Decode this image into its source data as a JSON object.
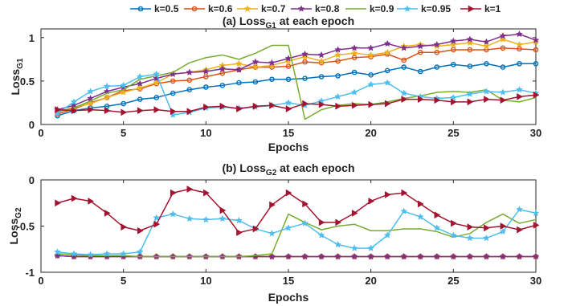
{
  "legend": {
    "entries": [
      {
        "label": "k=0.5",
        "color": "#0072BD",
        "marker": "circle"
      },
      {
        "label": "k=0.6",
        "color": "#D95319",
        "marker": "circle"
      },
      {
        "label": "k=0.7",
        "color": "#EDB120",
        "marker": "star"
      },
      {
        "label": "k=0.8",
        "color": "#7E2F8E",
        "marker": "star"
      },
      {
        "label": "k=0.9",
        "color": "#77AC30",
        "marker": "none"
      },
      {
        "label": "k=0.95",
        "color": "#4DBEEE",
        "marker": "star"
      },
      {
        "label": "k=1",
        "color": "#A2142F",
        "marker": "triangle-right"
      }
    ]
  },
  "chart_data": [
    {
      "type": "line",
      "title_main": "(a) Loss",
      "title_sub": "G1",
      "title_tail": " at each epoch",
      "xlabel": "Epochs",
      "ylabel_main": "Loss",
      "ylabel_sub": "G1",
      "xlim": [
        0,
        30
      ],
      "ylim": [
        0,
        1.1
      ],
      "xticks": [
        0,
        5,
        10,
        15,
        20,
        25,
        30
      ],
      "yticks": [
        0,
        0.5,
        1
      ],
      "ytick_labels": [
        "0",
        "0.5",
        "1"
      ],
      "x": [
        1,
        2,
        3,
        4,
        5,
        6,
        7,
        8,
        9,
        10,
        11,
        12,
        13,
        14,
        15,
        16,
        17,
        18,
        19,
        20,
        21,
        22,
        23,
        24,
        25,
        26,
        27,
        28,
        29,
        30
      ],
      "series": [
        {
          "name": "k=0.5",
          "values": [
            0.1,
            0.16,
            0.19,
            0.21,
            0.24,
            0.29,
            0.31,
            0.36,
            0.4,
            0.43,
            0.45,
            0.48,
            0.49,
            0.52,
            0.52,
            0.53,
            0.55,
            0.56,
            0.6,
            0.57,
            0.62,
            0.66,
            0.61,
            0.66,
            0.69,
            0.67,
            0.7,
            0.66,
            0.7,
            0.7
          ]
        },
        {
          "name": "k=0.6",
          "values": [
            0.12,
            0.18,
            0.25,
            0.31,
            0.39,
            0.41,
            0.47,
            0.5,
            0.51,
            0.55,
            0.59,
            0.63,
            0.66,
            0.66,
            0.67,
            0.72,
            0.71,
            0.73,
            0.77,
            0.78,
            0.81,
            0.74,
            0.83,
            0.83,
            0.86,
            0.86,
            0.86,
            0.88,
            0.87,
            0.86
          ]
        },
        {
          "name": "k=0.7",
          "values": [
            0.14,
            0.2,
            0.24,
            0.31,
            0.37,
            0.42,
            0.48,
            0.58,
            0.6,
            0.63,
            0.68,
            0.7,
            0.66,
            0.68,
            0.73,
            0.78,
            0.73,
            0.8,
            0.82,
            0.8,
            0.83,
            0.9,
            0.92,
            0.9,
            0.92,
            0.94,
            0.9,
            0.98,
            0.92,
            0.95
          ]
        },
        {
          "name": "k=0.8",
          "values": [
            0.17,
            0.22,
            0.3,
            0.38,
            0.43,
            0.47,
            0.53,
            0.58,
            0.6,
            0.61,
            0.64,
            0.63,
            0.72,
            0.71,
            0.76,
            0.81,
            0.8,
            0.86,
            0.88,
            0.88,
            0.93,
            0.88,
            0.9,
            0.92,
            0.96,
            0.98,
            0.95,
            1.02,
            1.04,
            0.97
          ]
        },
        {
          "name": "k=0.9",
          "values": [
            0.15,
            0.19,
            0.27,
            0.36,
            0.4,
            0.52,
            0.56,
            0.6,
            0.71,
            0.77,
            0.8,
            0.75,
            0.82,
            0.91,
            0.91,
            0.06,
            0.17,
            0.22,
            0.24,
            0.23,
            0.26,
            0.3,
            0.33,
            0.37,
            0.38,
            0.37,
            0.4,
            0.28,
            0.26,
            0.31
          ]
        },
        {
          "name": "k=0.95",
          "values": [
            0.13,
            0.26,
            0.38,
            0.44,
            0.45,
            0.55,
            0.58,
            0.11,
            0.14,
            0.19,
            0.2,
            0.19,
            0.2,
            0.22,
            0.25,
            0.22,
            0.27,
            0.32,
            0.37,
            0.46,
            0.48,
            0.36,
            0.32,
            0.3,
            0.31,
            0.35,
            0.38,
            0.37,
            0.4,
            0.36
          ]
        },
        {
          "name": "k=1",
          "values": [
            0.17,
            0.16,
            0.17,
            0.16,
            0.14,
            0.16,
            0.17,
            0.15,
            0.15,
            0.2,
            0.21,
            0.18,
            0.21,
            0.22,
            0.18,
            0.24,
            0.23,
            0.21,
            0.22,
            0.23,
            0.24,
            0.29,
            0.29,
            0.28,
            0.26,
            0.26,
            0.29,
            0.28,
            0.32,
            0.34
          ]
        }
      ]
    },
    {
      "type": "line",
      "title_main": "(b) Loss",
      "title_sub": "G2",
      "title_tail": " at each epoch",
      "xlabel": "Epochs",
      "ylabel_main": "Loss",
      "ylabel_sub": "G2",
      "xlim": [
        0,
        30
      ],
      "ylim": [
        -1,
        0
      ],
      "xticks": [
        0,
        5,
        10,
        15,
        20,
        25,
        30
      ],
      "yticks": [
        -1,
        -0.5,
        0
      ],
      "ytick_labels": [
        "-1",
        "-0.5",
        "0"
      ],
      "x": [
        1,
        2,
        3,
        4,
        5,
        6,
        7,
        8,
        9,
        10,
        11,
        12,
        13,
        14,
        15,
        16,
        17,
        18,
        19,
        20,
        21,
        22,
        23,
        24,
        25,
        26,
        27,
        28,
        29,
        30
      ],
      "series": [
        {
          "name": "k=0.5",
          "values": [
            -0.82,
            -0.83,
            -0.83,
            -0.83,
            -0.83,
            -0.83,
            -0.83,
            -0.83,
            -0.83,
            -0.83,
            -0.83,
            -0.83,
            -0.83,
            -0.83,
            -0.83,
            -0.83,
            -0.83,
            -0.83,
            -0.83,
            -0.83,
            -0.83,
            -0.83,
            -0.83,
            -0.83,
            -0.83,
            -0.83,
            -0.83,
            -0.83,
            -0.83,
            -0.83
          ]
        },
        {
          "name": "k=0.6",
          "values": [
            -0.82,
            -0.83,
            -0.83,
            -0.83,
            -0.83,
            -0.83,
            -0.83,
            -0.83,
            -0.83,
            -0.83,
            -0.83,
            -0.83,
            -0.83,
            -0.83,
            -0.83,
            -0.83,
            -0.83,
            -0.83,
            -0.83,
            -0.83,
            -0.83,
            -0.83,
            -0.83,
            -0.83,
            -0.83,
            -0.83,
            -0.83,
            -0.83,
            -0.83,
            -0.83
          ]
        },
        {
          "name": "k=0.7",
          "values": [
            -0.82,
            -0.83,
            -0.83,
            -0.83,
            -0.83,
            -0.83,
            -0.83,
            -0.83,
            -0.83,
            -0.83,
            -0.83,
            -0.83,
            -0.83,
            -0.83,
            -0.83,
            -0.83,
            -0.83,
            -0.83,
            -0.83,
            -0.83,
            -0.83,
            -0.83,
            -0.83,
            -0.83,
            -0.83,
            -0.83,
            -0.83,
            -0.83,
            -0.83,
            -0.83
          ]
        },
        {
          "name": "k=0.8",
          "values": [
            -0.82,
            -0.83,
            -0.83,
            -0.83,
            -0.83,
            -0.83,
            -0.83,
            -0.83,
            -0.83,
            -0.83,
            -0.83,
            -0.83,
            -0.83,
            -0.83,
            -0.83,
            -0.83,
            -0.83,
            -0.83,
            -0.83,
            -0.83,
            -0.83,
            -0.83,
            -0.83,
            -0.83,
            -0.83,
            -0.83,
            -0.83,
            -0.83,
            -0.83,
            -0.83
          ]
        },
        {
          "name": "k=0.9",
          "values": [
            -0.8,
            -0.81,
            -0.82,
            -0.82,
            -0.82,
            -0.83,
            -0.83,
            -0.83,
            -0.83,
            -0.83,
            -0.83,
            -0.83,
            -0.82,
            -0.8,
            -0.37,
            -0.46,
            -0.54,
            -0.5,
            -0.48,
            -0.55,
            -0.55,
            -0.53,
            -0.53,
            -0.56,
            -0.62,
            -0.58,
            -0.46,
            -0.37,
            -0.47,
            -0.43
          ]
        },
        {
          "name": "k=0.95",
          "values": [
            -0.78,
            -0.8,
            -0.81,
            -0.8,
            -0.8,
            -0.78,
            -0.41,
            -0.37,
            -0.42,
            -0.43,
            -0.42,
            -0.44,
            -0.53,
            -0.58,
            -0.52,
            -0.47,
            -0.6,
            -0.7,
            -0.74,
            -0.74,
            -0.6,
            -0.34,
            -0.4,
            -0.52,
            -0.6,
            -0.63,
            -0.63,
            -0.56,
            -0.32,
            -0.36
          ]
        },
        {
          "name": "k=1",
          "values": [
            -0.25,
            -0.2,
            -0.23,
            -0.36,
            -0.51,
            -0.55,
            -0.48,
            -0.14,
            -0.1,
            -0.14,
            -0.33,
            -0.57,
            -0.53,
            -0.27,
            -0.14,
            -0.26,
            -0.46,
            -0.46,
            -0.36,
            -0.23,
            -0.16,
            -0.14,
            -0.26,
            -0.38,
            -0.47,
            -0.51,
            -0.52,
            -0.5,
            -0.54,
            -0.49
          ]
        }
      ]
    }
  ]
}
